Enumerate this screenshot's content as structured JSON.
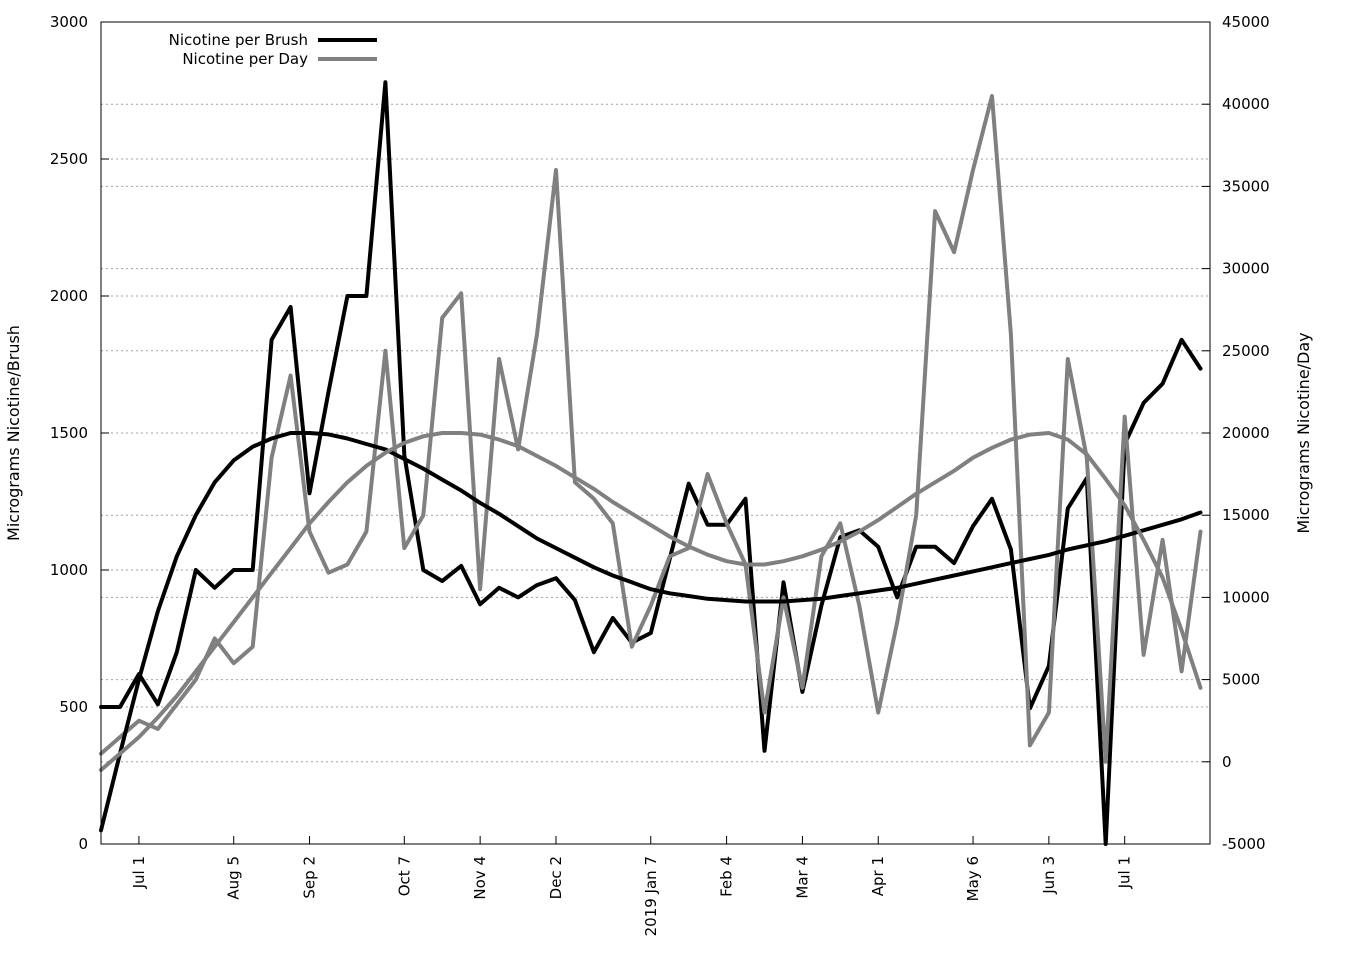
{
  "chart_data": {
    "type": "line",
    "grid": true,
    "legend_position": "top-left",
    "y_left": {
      "label": "Micrograms Nicotine/Brush",
      "range": [
        0,
        3000
      ],
      "ticks": [
        0,
        500,
        1000,
        1500,
        2000,
        2500,
        3000
      ]
    },
    "y_right": {
      "label": "Micrograms Nicotine/Day",
      "range": [
        -5000,
        45000
      ],
      "ticks": [
        -5000,
        0,
        5000,
        10000,
        15000,
        20000,
        25000,
        30000,
        35000,
        40000,
        45000
      ]
    },
    "x_ticks": [
      {
        "label": "Jul 1",
        "week": 2
      },
      {
        "label": "Aug 5",
        "week": 7
      },
      {
        "label": "Sep 2",
        "week": 11
      },
      {
        "label": "Oct 7",
        "week": 16
      },
      {
        "label": "Nov 4",
        "week": 20
      },
      {
        "label": "Dec 2",
        "week": 24
      },
      {
        "label": "2019 Jan 7",
        "week": 29
      },
      {
        "label": "Feb 4",
        "week": 33
      },
      {
        "label": "Mar 4",
        "week": 37
      },
      {
        "label": "Apr 1",
        "week": 41
      },
      {
        "label": "May 6",
        "week": 46
      },
      {
        "label": "Jun 3",
        "week": 50
      },
      {
        "label": "Jul 1",
        "week": 54
      }
    ],
    "x_range": [
      0,
      58.5
    ],
    "series": [
      {
        "name": "Nicotine per Brush",
        "axis": "left",
        "color": "#000000",
        "width": 4,
        "values": [
          500,
          500,
          620,
          510,
          700,
          1000,
          935,
          1000,
          1000,
          1840,
          1960,
          1280,
          1650,
          2000,
          2000,
          2780,
          1420,
          1000,
          960,
          1015,
          875,
          935,
          900,
          945,
          970,
          890,
          700,
          825,
          735,
          770,
          1040,
          1315,
          1165,
          1165,
          1260,
          340,
          955,
          555,
          870,
          1120,
          1145,
          1085,
          900,
          1085,
          1085,
          1025,
          1160,
          1260,
          1075,
          495,
          650,
          1225,
          1335,
          0,
          1460,
          1610,
          1680,
          1840,
          1735
        ]
      },
      {
        "name": "Nicotine per Day",
        "axis": "right",
        "color": "#808080",
        "width": 4,
        "values": [
          500,
          1500,
          2500,
          2000,
          3500,
          5000,
          7500,
          6000,
          7000,
          18500,
          23500,
          14000,
          11500,
          12000,
          14000,
          25000,
          13000,
          15000,
          27000,
          28500,
          10500,
          24500,
          19000,
          26000,
          36000,
          17000,
          16000,
          14500,
          7000,
          9500,
          12500,
          13000,
          17500,
          14500,
          12000,
          3000,
          10000,
          4500,
          12500,
          14500,
          9500,
          3000,
          8500,
          15000,
          33500,
          31000,
          36000,
          40500,
          26000,
          1000,
          3000,
          24500,
          18500,
          0,
          21000,
          6500,
          13500,
          5500,
          14000
        ]
      },
      {
        "name": "",
        "axis": "left",
        "color": "#000000",
        "width": 4,
        "smooth": true,
        "values": [
          50,
          330,
          600,
          850,
          1050,
          1200,
          1320,
          1400,
          1450,
          1480,
          1500,
          1500,
          1495,
          1480,
          1460,
          1440,
          1405,
          1370,
          1330,
          1290,
          1245,
          1205,
          1160,
          1115,
          1080,
          1045,
          1010,
          980,
          955,
          930,
          915,
          905,
          895,
          890,
          885,
          885,
          885,
          890,
          895,
          905,
          915,
          925,
          935,
          950,
          965,
          980,
          995,
          1010,
          1025,
          1040,
          1055,
          1075,
          1090,
          1105,
          1125,
          1145,
          1165,
          1185,
          1210
        ]
      },
      {
        "name": "",
        "axis": "right",
        "color": "#808080",
        "width": 4,
        "smooth": true,
        "values": [
          -500,
          500,
          1500,
          2700,
          4000,
          5500,
          7000,
          8500,
          10000,
          11500,
          13000,
          14500,
          15800,
          17000,
          18000,
          18800,
          19400,
          19800,
          20000,
          20000,
          19900,
          19600,
          19200,
          18600,
          18000,
          17300,
          16600,
          15800,
          15100,
          14400,
          13700,
          13100,
          12600,
          12200,
          12000,
          12000,
          12200,
          12500,
          12900,
          13400,
          14000,
          14700,
          15500,
          16300,
          17000,
          17700,
          18500,
          19100,
          19600,
          19900,
          20000,
          19600,
          18700,
          17200,
          15600,
          13500,
          11200,
          8000,
          4500
        ]
      }
    ]
  }
}
